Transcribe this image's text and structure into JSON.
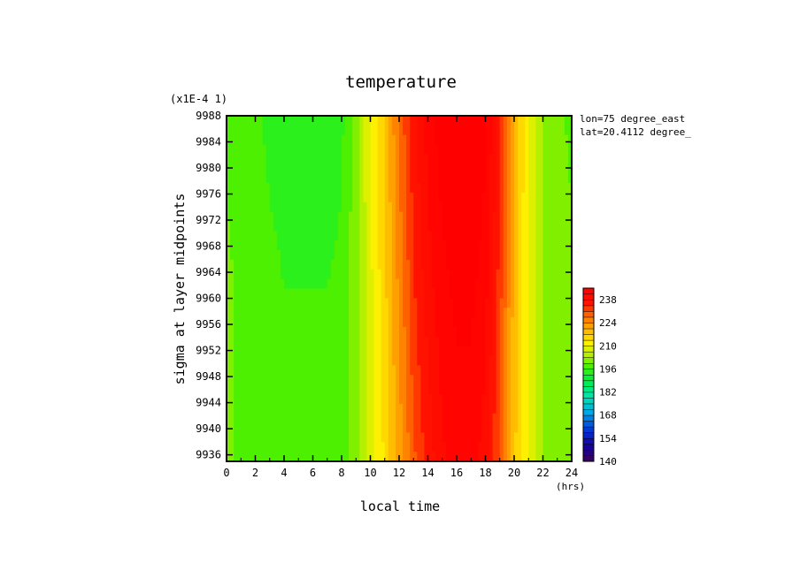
{
  "chart_data": {
    "type": "heatmap",
    "title": "temperature",
    "xlabel": "local time",
    "ylabel": "sigma at layer midpoints",
    "x_units": "(hrs)",
    "y_scale_note": "(x1E-4 1)",
    "annotations": [
      "lon=75 degree_east",
      "lat=20.4112 degree_"
    ],
    "xlim": [
      0,
      24
    ],
    "ylim": [
      9988,
      9935
    ],
    "x_ticks": [
      0,
      2,
      4,
      6,
      8,
      10,
      12,
      14,
      16,
      18,
      20,
      22,
      24
    ],
    "y_ticks": [
      9936,
      9940,
      9944,
      9948,
      9952,
      9956,
      9960,
      9964,
      9968,
      9972,
      9976,
      9980,
      9984,
      9988
    ],
    "colorbar": {
      "min": 140,
      "max": 245,
      "step": 3.5,
      "tick_labels": [
        140,
        154,
        168,
        182,
        196,
        210,
        224,
        238
      ]
    },
    "x": [
      0,
      1,
      2,
      3,
      4,
      5,
      6,
      7,
      8,
      9,
      10,
      11,
      12,
      13,
      14,
      15,
      16,
      17,
      18,
      19,
      20,
      21,
      22,
      23,
      24
    ],
    "y": [
      9935,
      9962,
      9988
    ],
    "z": [
      [
        200,
        199,
        199,
        199,
        198,
        198,
        198,
        198,
        198,
        202,
        208,
        214,
        222,
        230,
        236,
        241,
        243,
        243,
        240,
        230,
        218,
        209,
        203,
        201,
        200
      ],
      [
        200,
        199,
        198,
        197,
        196,
        196,
        196,
        196,
        197,
        202,
        209,
        216,
        225,
        234,
        240,
        244,
        246,
        246,
        243,
        233,
        219,
        209,
        203,
        201,
        200
      ],
      [
        199,
        198,
        197,
        195,
        194,
        194,
        194,
        193,
        195,
        201,
        210,
        218,
        228,
        237,
        243,
        247,
        249,
        249,
        246,
        236,
        221,
        210,
        203,
        200,
        199
      ]
    ]
  }
}
